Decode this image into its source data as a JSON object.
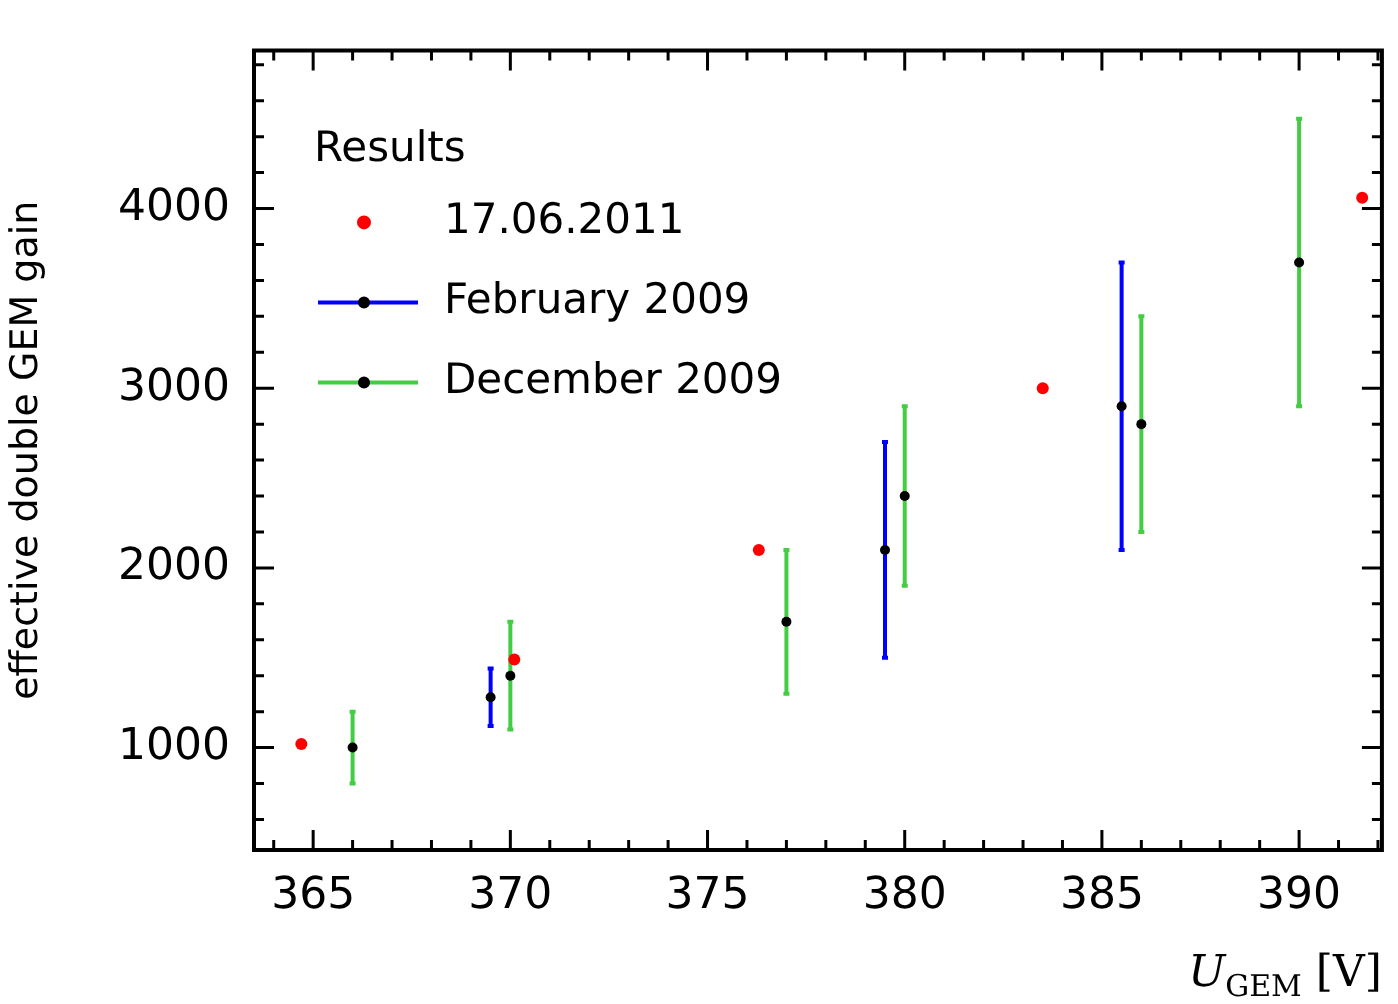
{
  "chart_data": {
    "type": "scatter",
    "xlabel": "U$_{GEM}$ [V]",
    "ylabel": "effective double GEM gain",
    "legend_title": "Results",
    "legend": "top left",
    "grid": false,
    "marker": "circle",
    "xlim": [
      363.5,
      392.1
    ],
    "ylim": [
      430,
      4880
    ],
    "xticks": [
      {
        "value": 364,
        "label": null
      },
      365,
      {
        "value": 366,
        "label": null
      },
      {
        "value": 367,
        "label": null
      },
      {
        "value": 368,
        "label": null
      },
      {
        "value": 369,
        "label": null
      },
      370,
      {
        "value": 371,
        "label": null
      },
      {
        "value": 372,
        "label": null
      },
      {
        "value": 373,
        "label": null
      },
      {
        "value": 374,
        "label": null
      },
      375,
      {
        "value": 376,
        "label": null
      },
      {
        "value": 377,
        "label": null
      },
      {
        "value": 378,
        "label": null
      },
      {
        "value": 379,
        "label": null
      },
      380,
      {
        "value": 381,
        "label": null
      },
      {
        "value": 382,
        "label": null
      },
      {
        "value": 383,
        "label": null
      },
      {
        "value": 384,
        "label": null
      },
      385,
      {
        "value": 386,
        "label": null
      },
      {
        "value": 387,
        "label": null
      },
      {
        "value": 388,
        "label": null
      },
      {
        "value": 389,
        "label": null
      },
      390,
      {
        "value": 391,
        "label": null
      },
      {
        "value": 392,
        "label": null
      }
    ],
    "yticks": [
      {
        "value": 600,
        "label": null
      },
      {
        "value": 800,
        "label": null
      },
      1000,
      {
        "value": 1200,
        "label": null
      },
      {
        "value": 1400,
        "label": null
      },
      {
        "value": 1600,
        "label": null
      },
      {
        "value": 1800,
        "label": null
      },
      2000,
      {
        "value": 2200,
        "label": null
      },
      {
        "value": 2400,
        "label": null
      },
      {
        "value": 2600,
        "label": null
      },
      {
        "value": 2800,
        "label": null
      },
      3000,
      {
        "value": 3200,
        "label": null
      },
      {
        "value": 3400,
        "label": null
      },
      {
        "value": 3600,
        "label": null
      },
      {
        "value": 3800,
        "label": null
      },
      4000,
      {
        "value": 4200,
        "label": null
      },
      {
        "value": 4400,
        "label": null
      },
      {
        "value": 4600,
        "label": null
      },
      {
        "value": 4800,
        "label": null
      }
    ],
    "series": [
      {
        "name": "17.06.2011",
        "color": "#ff0000",
        "x": [
          364.7,
          370.1,
          376.3,
          383.5,
          391.6
        ],
        "values": [
          1020,
          1490,
          2100,
          3000,
          4060
        ]
      },
      {
        "name": "February 2009",
        "color": "#0000ff",
        "colors": [
          "#000000",
          "#000000",
          "#000000"
        ],
        "x": [
          369.5,
          379.5,
          385.5
        ],
        "values": [
          1280,
          2100,
          2900
        ],
        "errors": [
          [
            1120,
            1440
          ],
          [
            1500,
            2700
          ],
          [
            2100,
            3700
          ]
        ]
      },
      {
        "name": "December 2009",
        "color": "#44cc44",
        "colors": [
          "#000000",
          "#000000",
          "#000000",
          "#000000",
          "#000000",
          "#000000"
        ],
        "x": [
          366,
          370,
          377,
          380,
          386,
          390
        ],
        "values": [
          1000,
          1400,
          1700,
          2400,
          2800,
          3700
        ],
        "errors": [
          [
            800,
            1200
          ],
          [
            1100,
            1700
          ],
          [
            1300,
            2100
          ],
          [
            1900,
            2900
          ],
          [
            2200,
            3400
          ],
          [
            2900,
            4500
          ]
        ]
      }
    ]
  }
}
